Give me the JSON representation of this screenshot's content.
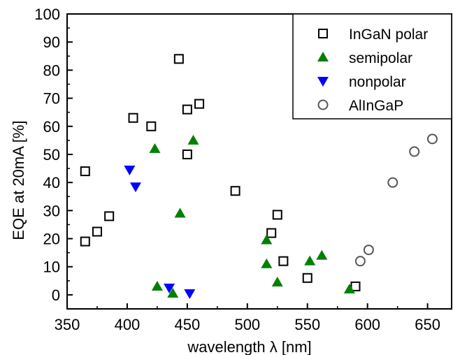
{
  "chart_data": {
    "type": "scatter",
    "title": "",
    "xlabel": "wavelength λ [nm]",
    "ylabel": "EQE at 20mA [%]",
    "xlim": [
      350,
      670
    ],
    "ylim": [
      -5,
      100
    ],
    "x_ticks": [
      350,
      400,
      450,
      500,
      550,
      600,
      650
    ],
    "y_ticks": [
      0,
      10,
      20,
      30,
      40,
      50,
      60,
      70,
      80,
      90,
      100
    ],
    "x_tick_labels": [
      "350",
      "400",
      "450",
      "500",
      "550",
      "600",
      "650"
    ],
    "y_tick_labels": [
      "0",
      "10",
      "20",
      "30",
      "40",
      "50",
      "60",
      "70",
      "80",
      "90",
      "100"
    ],
    "grid": false,
    "legend_position": "top-right",
    "series": [
      {
        "name": "InGaN polar",
        "marker": "open-square",
        "color": "#000000",
        "points": [
          {
            "x": 365,
            "y": 44
          },
          {
            "x": 365,
            "y": 19
          },
          {
            "x": 375,
            "y": 22.5
          },
          {
            "x": 385,
            "y": 28
          },
          {
            "x": 405,
            "y": 63
          },
          {
            "x": 420,
            "y": 60
          },
          {
            "x": 443,
            "y": 84
          },
          {
            "x": 450,
            "y": 66
          },
          {
            "x": 450,
            "y": 50
          },
          {
            "x": 460,
            "y": 68
          },
          {
            "x": 490,
            "y": 37
          },
          {
            "x": 520,
            "y": 22
          },
          {
            "x": 525,
            "y": 28.5
          },
          {
            "x": 530,
            "y": 12
          },
          {
            "x": 550,
            "y": 6
          },
          {
            "x": 590,
            "y": 3
          }
        ]
      },
      {
        "name": "semipolar",
        "marker": "filled-triangle-up",
        "color": "#008000",
        "points": [
          {
            "x": 423,
            "y": 52
          },
          {
            "x": 455,
            "y": 55
          },
          {
            "x": 444,
            "y": 29
          },
          {
            "x": 425,
            "y": 3
          },
          {
            "x": 438,
            "y": 0.5
          },
          {
            "x": 516,
            "y": 19.5
          },
          {
            "x": 516,
            "y": 11
          },
          {
            "x": 525,
            "y": 4.5
          },
          {
            "x": 552,
            "y": 12
          },
          {
            "x": 562,
            "y": 14
          },
          {
            "x": 585,
            "y": 2
          }
        ]
      },
      {
        "name": "nonpolar",
        "marker": "filled-triangle-down",
        "color": "#0000ff",
        "points": [
          {
            "x": 402,
            "y": 44.5
          },
          {
            "x": 407,
            "y": 38.5
          },
          {
            "x": 435,
            "y": 2.5
          },
          {
            "x": 452,
            "y": 0.5
          }
        ]
      },
      {
        "name": "AlInGaP",
        "marker": "open-circle",
        "color": "#555555",
        "points": [
          {
            "x": 594,
            "y": 12
          },
          {
            "x": 601,
            "y": 16
          },
          {
            "x": 621,
            "y": 40
          },
          {
            "x": 639,
            "y": 51
          },
          {
            "x": 654,
            "y": 55.5
          }
        ]
      }
    ]
  }
}
